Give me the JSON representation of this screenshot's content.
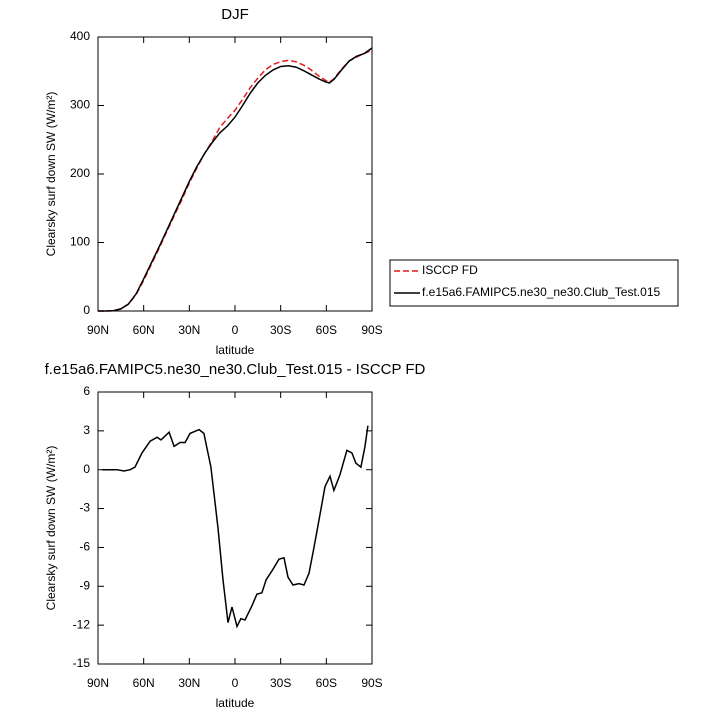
{
  "chart_data": [
    {
      "type": "line",
      "title": "DJF",
      "ylabel": "Clearsky surf down SW (W/m²)",
      "xlabel": "latitude",
      "xlim": [
        90,
        -90
      ],
      "xticks": [
        {
          "value": 90,
          "label": "90N"
        },
        {
          "value": 60,
          "label": "60N"
        },
        {
          "value": 30,
          "label": "30N"
        },
        0,
        {
          "value": -30,
          "label": "30S"
        },
        {
          "value": -60,
          "label": "60S"
        },
        {
          "value": -90,
          "label": "90S"
        }
      ],
      "ylim": [
        0,
        400
      ],
      "yticks": [
        0,
        100,
        200,
        300,
        400
      ],
      "legend": "outside-right",
      "x": [
        90,
        85,
        80,
        75,
        70,
        65,
        60,
        55,
        50,
        45,
        40,
        35,
        30,
        25,
        20,
        15,
        10,
        5,
        0,
        -5,
        -10,
        -15,
        -20,
        -25,
        -30,
        -35,
        -40,
        -45,
        -50,
        -55,
        -60,
        -62,
        -65,
        -70,
        -75,
        -80,
        -85,
        -90
      ],
      "series": [
        {
          "name": "ISCCP FD",
          "color": "#e41a1c",
          "dashed": true,
          "values": [
            0,
            0,
            0.5,
            3,
            10,
            24,
            45,
            68,
            91,
            115,
            139,
            162,
            187,
            209,
            230,
            248,
            268,
            281,
            293,
            309,
            326,
            340,
            352,
            360,
            364,
            366,
            364,
            359,
            352,
            343,
            336,
            334,
            339,
            353,
            365,
            371,
            376,
            381
          ]
        },
        {
          "name": "f.e15a6.FAMIPC5.ne30_ne30.Club_Test.015",
          "color": "#000000",
          "dashed": false,
          "values": [
            0,
            0,
            0.5,
            3,
            10,
            25,
            47,
            70,
            93,
            117,
            141,
            165,
            189,
            211,
            230,
            246,
            260,
            270,
            283,
            300,
            318,
            333,
            344,
            352,
            357,
            358,
            356,
            351,
            345,
            339,
            334,
            333,
            338,
            352,
            365,
            372,
            376,
            384
          ]
        }
      ]
    },
    {
      "type": "line",
      "title": "f.e15a6.FAMIPC5.ne30_ne30.Club_Test.015 - ISCCP FD",
      "ylabel": "Clearsky surf down SW (W/m²)",
      "xlabel": "latitude",
      "xlim": [
        90,
        -90
      ],
      "xticks": [
        {
          "value": 90,
          "label": "90N"
        },
        {
          "value": 60,
          "label": "60N"
        },
        {
          "value": 30,
          "label": "30N"
        },
        0,
        {
          "value": -30,
          "label": "30S"
        },
        {
          "value": -60,
          "label": "60S"
        },
        {
          "value": -90,
          "label": "90S"
        }
      ],
      "ylim": [
        -15,
        6
      ],
      "yticks": [
        6,
        3,
        0,
        -3,
        -6,
        -9,
        -12,
        -15
      ],
      "color": "#000000",
      "x": [
        87.3,
        77.5,
        72.9,
        68.9,
        65.7,
        61.1,
        55.8,
        51.2,
        48.6,
        43.3,
        40.0,
        36.1,
        32.8,
        29.5,
        23.6,
        20.4,
        15.8,
        11.2,
        7.9,
        4.6,
        2.0,
        -1.3,
        -3.9,
        -6.6,
        -11.2,
        -14.4,
        -17.7,
        -20.4,
        -24.9,
        -28.9,
        -32.2,
        -34.8,
        -38.1,
        -42.0,
        -45.3,
        -48.6,
        -51.9,
        -55.8,
        -59.1,
        -62.4,
        -65.0,
        -68.9,
        -73.5,
        -76.8,
        -79.4,
        -82.7,
        -85.4,
        -87.3
      ],
      "values": [
        0,
        0,
        -0.1,
        0,
        0.2,
        1.3,
        2.2,
        2.5,
        2.3,
        2.9,
        1.8,
        2.1,
        2.1,
        2.8,
        3.1,
        2.8,
        0.2,
        -4.5,
        -8.5,
        -11.8,
        -10.6,
        -12.1,
        -11.5,
        -11.6,
        -10.5,
        -9.6,
        -9.5,
        -8.5,
        -7.7,
        -6.9,
        -6.8,
        -8.3,
        -8.9,
        -8.8,
        -8.9,
        -8.0,
        -6.0,
        -3.5,
        -1.3,
        -0.5,
        -1.6,
        -0.4,
        1.5,
        1.3,
        0.5,
        0.2,
        1.8,
        3.4
      ]
    }
  ]
}
